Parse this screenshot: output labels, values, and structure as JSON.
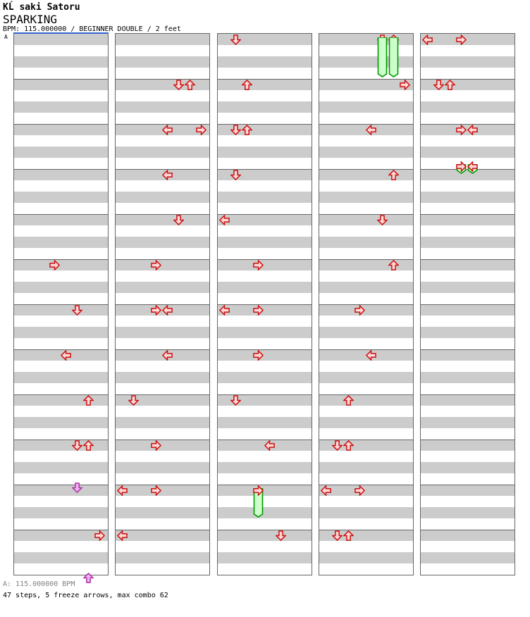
{
  "header": {
    "artist": "KĹ saki Satoru",
    "song_title": "SPARKING",
    "info_line": "BPM: 115.000000 / BEGINNER DOUBLE / 2 feet"
  },
  "marker": {
    "label": "A"
  },
  "footer": {
    "bpm_line": "A: 115.000000 BPM",
    "stats_line": "47 steps, 5 freeze arrows, max combo 62"
  },
  "colors": {
    "red_fill": "#ffd8d8",
    "red_stroke": "#cc1111",
    "purple_fill": "#f0b4f0",
    "purple_stroke": "#aa33aa",
    "freeze_fill": "#ccffcc",
    "freeze_stroke": "#009900",
    "stripe_gray": "#cccccc",
    "grid_line": "#666666",
    "bpm_marker_blue": "#3465cf",
    "footer_gray": "#808080"
  },
  "chart": {
    "mode": "double",
    "lanes": 8,
    "lane_directions": [
      "left",
      "down",
      "up",
      "right",
      "left",
      "down",
      "up",
      "right"
    ],
    "beats_per_column": 48,
    "measures_per_column": 12,
    "columns": [
      {
        "notes": [
          {
            "beat": 20,
            "lanes": [
              3
            ],
            "color": "red"
          },
          {
            "beat": 24,
            "lanes": [
              5
            ],
            "color": "red"
          },
          {
            "beat": 28,
            "lanes": [
              4
            ],
            "color": "red"
          },
          {
            "beat": 32,
            "lanes": [
              6
            ],
            "color": "red"
          },
          {
            "beat": 36,
            "lanes": [
              5,
              6
            ],
            "color": "red"
          },
          {
            "beat": 39.75,
            "lanes": [
              5
            ],
            "color": "purple"
          },
          {
            "beat": 44,
            "lanes": [
              7
            ],
            "color": "red"
          },
          {
            "beat": 47.75,
            "lanes": [
              6
            ],
            "color": "purple"
          }
        ]
      },
      {
        "notes": [
          {
            "beat": 4,
            "lanes": [
              5,
              6
            ],
            "color": "red"
          },
          {
            "beat": 8,
            "lanes": [
              4,
              7
            ],
            "color": "red"
          },
          {
            "beat": 12,
            "lanes": [
              4
            ],
            "color": "red"
          },
          {
            "beat": 16,
            "lanes": [
              5
            ],
            "color": "red"
          },
          {
            "beat": 20,
            "lanes": [
              3
            ],
            "color": "red"
          },
          {
            "beat": 24,
            "lanes": [
              3,
              4
            ],
            "color": "red"
          },
          {
            "beat": 28,
            "lanes": [
              4
            ],
            "color": "red"
          },
          {
            "beat": 32,
            "lanes": [
              1
            ],
            "color": "red"
          },
          {
            "beat": 36,
            "lanes": [
              3
            ],
            "color": "red"
          },
          {
            "beat": 40,
            "lanes": [
              0,
              3
            ],
            "color": "red"
          },
          {
            "beat": 44,
            "lanes": [
              0
            ],
            "color": "red"
          }
        ]
      },
      {
        "notes": [
          {
            "beat": 0,
            "lanes": [
              1
            ],
            "color": "red"
          },
          {
            "beat": 4,
            "lanes": [
              2
            ],
            "color": "red"
          },
          {
            "beat": 8,
            "lanes": [
              1,
              2
            ],
            "color": "red"
          },
          {
            "beat": 12,
            "lanes": [
              1
            ],
            "color": "red"
          },
          {
            "beat": 16,
            "lanes": [
              0
            ],
            "color": "red"
          },
          {
            "beat": 20,
            "lanes": [
              3
            ],
            "color": "red"
          },
          {
            "beat": 24,
            "lanes": [
              0,
              3
            ],
            "color": "red"
          },
          {
            "beat": 28,
            "lanes": [
              3
            ],
            "color": "red"
          },
          {
            "beat": 32,
            "lanes": [
              1
            ],
            "color": "red"
          },
          {
            "beat": 36,
            "lanes": [
              4
            ],
            "color": "red"
          },
          {
            "beat": 40,
            "lanes": [
              3
            ],
            "color": "red",
            "freeze_to_beat": 42.9
          },
          {
            "beat": 44,
            "lanes": [
              5
            ],
            "color": "red"
          }
        ]
      },
      {
        "notes": [
          {
            "beat": 0,
            "lanes": [
              5,
              6
            ],
            "color": "red",
            "freeze_to_beat": 3.8,
            "tail_over_head": true
          },
          {
            "beat": 4,
            "lanes": [
              7
            ],
            "color": "red"
          },
          {
            "beat": 8,
            "lanes": [
              4
            ],
            "color": "red"
          },
          {
            "beat": 12,
            "lanes": [
              6
            ],
            "color": "red"
          },
          {
            "beat": 16,
            "lanes": [
              5
            ],
            "color": "red"
          },
          {
            "beat": 20,
            "lanes": [
              6
            ],
            "color": "red"
          },
          {
            "beat": 24,
            "lanes": [
              3
            ],
            "color": "red"
          },
          {
            "beat": 28,
            "lanes": [
              4
            ],
            "color": "red"
          },
          {
            "beat": 32,
            "lanes": [
              2
            ],
            "color": "red"
          },
          {
            "beat": 36,
            "lanes": [
              1,
              2
            ],
            "color": "red"
          },
          {
            "beat": 40,
            "lanes": [
              0,
              3
            ],
            "color": "red"
          },
          {
            "beat": 44,
            "lanes": [
              1,
              2
            ],
            "color": "red"
          }
        ]
      },
      {
        "notes": [
          {
            "beat": 0,
            "lanes": [
              0,
              3
            ],
            "color": "red"
          },
          {
            "beat": 4,
            "lanes": [
              1,
              2
            ],
            "color": "red"
          },
          {
            "beat": 8,
            "lanes": [
              3,
              4
            ],
            "color": "red"
          },
          {
            "beat": 11.25,
            "lanes": [
              3,
              4
            ],
            "color": "red",
            "freeze_to_beat": 12.4
          }
        ]
      }
    ]
  }
}
